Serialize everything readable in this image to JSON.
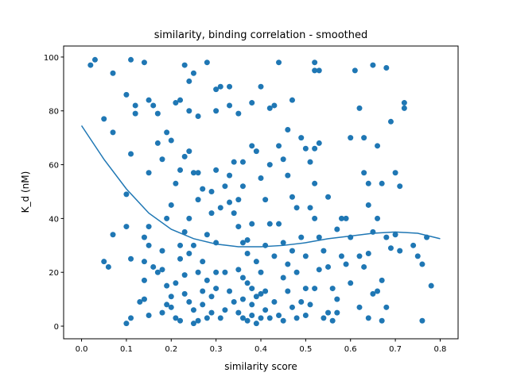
{
  "chart_data": {
    "type": "scatter",
    "title": "similarity, binding correlation - smoothed",
    "xlabel": "similarity score",
    "ylabel": "K_d (nM)",
    "xlim": [
      -0.04,
      0.84
    ],
    "ylim": [
      -4.7,
      104.1
    ],
    "xticks": [
      {
        "value": 0,
        "label": "0.0"
      },
      0.1,
      0.2,
      0.3,
      0.4,
      0.5,
      0.6,
      0.7,
      0.8
    ],
    "yticks": [
      0,
      20,
      40,
      60,
      80,
      100
    ],
    "series": [
      {
        "type": "scatter",
        "color": "#1f77b4",
        "x": [
          0.02,
          0.03,
          0.07,
          0.05,
          0.07,
          0.1,
          0.12,
          0.12,
          0.11,
          0.14,
          0.15,
          0.16,
          0.17,
          0.19,
          0.18,
          0.2,
          0.17,
          0.15,
          0.11,
          0.1,
          0.1,
          0.07,
          0.05,
          0.06,
          0.11,
          0.1,
          0.11,
          0.13,
          0.14,
          0.15,
          0.14,
          0.14,
          0.15,
          0.14,
          0.15,
          0.16,
          0.17,
          0.18,
          0.18,
          0.19,
          0.2,
          0.21,
          0.22,
          0.23,
          0.24,
          0.25,
          0.26,
          0.25,
          0.27,
          0.28,
          0.29,
          0.3,
          0.3,
          0.29,
          0.3,
          0.3,
          0.3,
          0.28,
          0.27,
          0.26,
          0.25,
          0.24,
          0.23,
          0.22,
          0.22,
          0.23,
          0.24,
          0.25,
          0.24,
          0.21,
          0.26,
          0.31,
          0.33,
          0.33,
          0.35,
          0.34,
          0.36,
          0.33,
          0.35,
          0.36,
          0.35,
          0.36,
          0.37,
          0.37,
          0.38,
          0.38,
          0.39,
          0.4,
          0.41,
          0.42,
          0.4,
          0.4,
          0.41,
          0.43,
          0.44,
          0.45,
          0.45,
          0.46,
          0.47,
          0.48,
          0.49,
          0.5,
          0.5,
          0.49,
          0.48,
          0.47,
          0.46,
          0.45,
          0.46,
          0.47,
          0.44,
          0.43,
          0.42,
          0.4,
          0.38,
          0.38,
          0.39,
          0.4,
          0.41,
          0.42,
          0.38,
          0.37,
          0.39,
          0.42,
          0.44,
          0.49,
          0.5,
          0.52,
          0.53,
          0.52,
          0.52,
          0.53,
          0.51,
          0.52,
          0.51,
          0.52,
          0.53,
          0.54,
          0.55,
          0.56,
          0.57,
          0.56,
          0.55,
          0.55,
          0.57,
          0.58,
          0.59,
          0.59,
          0.6,
          0.6,
          0.61,
          0.62,
          0.63,
          0.63,
          0.64,
          0.64,
          0.65,
          0.64,
          0.63,
          0.62,
          0.64,
          0.65,
          0.66,
          0.67,
          0.67,
          0.66,
          0.65,
          0.68,
          0.69,
          0.7,
          0.71,
          0.72,
          0.72,
          0.71,
          0.69,
          0.68,
          0.68,
          0.67,
          0.74,
          0.75,
          0.76,
          0.76,
          0.77,
          0.78,
          0.32,
          0.33,
          0.34,
          0.35,
          0.36,
          0.37,
          0.36,
          0.31,
          0.32,
          0.27,
          0.28,
          0.29,
          0.26,
          0.25,
          0.24,
          0.23,
          0.22,
          0.21,
          0.2,
          0.19,
          0.18,
          0.19,
          0.2,
          0.21,
          0.22,
          0.23,
          0.24,
          0.26,
          0.27,
          0.28,
          0.29,
          0.3,
          0.31,
          0.32,
          0.33,
          0.34,
          0.35,
          0.36,
          0.38,
          0.39,
          0.41,
          0.43,
          0.44,
          0.45,
          0.46,
          0.47,
          0.48,
          0.5,
          0.51,
          0.52,
          0.53,
          0.54,
          0.57,
          0.58,
          0.6,
          0.62,
          0.66,
          0.7
        ],
        "values": [
          97,
          99,
          94,
          77,
          72,
          86,
          79,
          82,
          99,
          98,
          84,
          82,
          79,
          72,
          62,
          69,
          68,
          57,
          64,
          49,
          37,
          34,
          24,
          22,
          25,
          1,
          3,
          9,
          10,
          4,
          17,
          24,
          30,
          33,
          37,
          22,
          20,
          28,
          5,
          8,
          11,
          3,
          2,
          12,
          9,
          6,
          2,
          1,
          13,
          17,
          5,
          20,
          31,
          50,
          58,
          80,
          88,
          98,
          51,
          57,
          57,
          65,
          63,
          58,
          84,
          97,
          91,
          94,
          80,
          83,
          78,
          89,
          82,
          89,
          79,
          61,
          61,
          46,
          47,
          52,
          37,
          31,
          27,
          16,
          8,
          4,
          1,
          3,
          6,
          3,
          12,
          20,
          30,
          26,
          38,
          31,
          18,
          13,
          7,
          3,
          9,
          14,
          26,
          33,
          44,
          48,
          56,
          62,
          73,
          84,
          98,
          82,
          81,
          89,
          83,
          67,
          65,
          55,
          47,
          38,
          38,
          32,
          24,
          60,
          67,
          70,
          66,
          66,
          68,
          95,
          98,
          95,
          61,
          53,
          44,
          40,
          33,
          28,
          22,
          14,
          5,
          2,
          5,
          48,
          36,
          40,
          40,
          23,
          16,
          70,
          95,
          81,
          70,
          57,
          53,
          45,
          35,
          27,
          22,
          7,
          3,
          12,
          13,
          2,
          53,
          67,
          97,
          96,
          76,
          57,
          52,
          81,
          83,
          28,
          29,
          33,
          7,
          17,
          30,
          26,
          2,
          23,
          33,
          15,
          20,
          13,
          9,
          5,
          3,
          2,
          10,
          3,
          6,
          24,
          34,
          42,
          47,
          30,
          40,
          35,
          25,
          16,
          7,
          15,
          21,
          40,
          45,
          53,
          30,
          19,
          27,
          20,
          8,
          3,
          11,
          14,
          44,
          52,
          56,
          42,
          21,
          18,
          14,
          11,
          13,
          9,
          4,
          2,
          23,
          28,
          20,
          4,
          8,
          14,
          21,
          3,
          10,
          26,
          33,
          26,
          40,
          34
        ]
      },
      {
        "type": "line",
        "color": "#1f77b4",
        "x": [
          0,
          0.05,
          0.1,
          0.15,
          0.2,
          0.25,
          0.3,
          0.35,
          0.4,
          0.45,
          0.5,
          0.55,
          0.6,
          0.65,
          0.7,
          0.75,
          0.8
        ],
        "values": [
          74.5,
          62,
          51,
          42,
          36,
          32.5,
          30.5,
          29.5,
          29.5,
          30,
          31,
          32.5,
          33.5,
          34.5,
          35,
          34.5,
          32.5
        ]
      }
    ]
  }
}
